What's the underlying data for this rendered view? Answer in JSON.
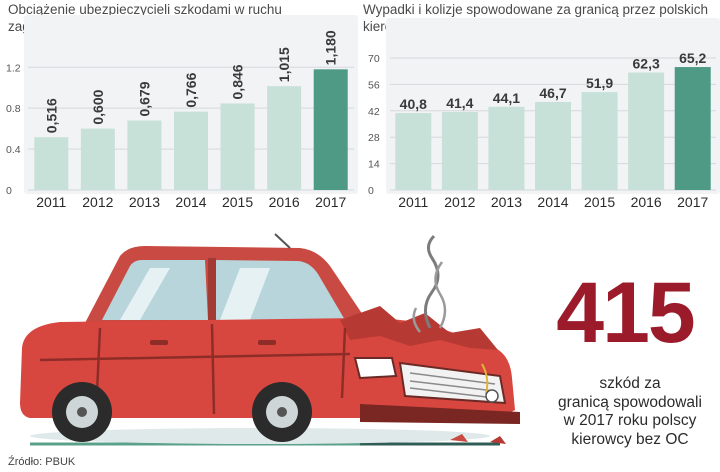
{
  "chart_data": [
    {
      "type": "bar",
      "title": "Obciążenie ubezpieczycieli szkodami w ruchu zagranicznym, w mld zł",
      "categories": [
        "2011",
        "2012",
        "2013",
        "2014",
        "2015",
        "2016",
        "2017"
      ],
      "values": [
        0.516,
        0.6,
        0.679,
        0.766,
        0.846,
        1.015,
        1.18
      ],
      "value_labels": [
        "0,516",
        "0,600",
        "0,679",
        "0,766",
        "0,846",
        "1,015",
        "1,180"
      ],
      "yticks": [
        0,
        0.4,
        0.8,
        1.2
      ],
      "ytick_labels": [
        "0",
        "0.4",
        "0.8",
        "1.2"
      ],
      "ylim": [
        0,
        1.32
      ],
      "grid": true,
      "colors": {
        "bar": "#c7e0d8",
        "highlight": "#4f9a85"
      }
    },
    {
      "type": "bar",
      "title": "Wypadki i kolizje spowodowane za granicą przez polskich kierowców, w tys.",
      "categories": [
        "2011",
        "2012",
        "2013",
        "2014",
        "2015",
        "2016",
        "2017"
      ],
      "values": [
        40.8,
        41.4,
        44.1,
        46.7,
        51.9,
        62.3,
        65.2
      ],
      "value_labels": [
        "40,8",
        "41,4",
        "44,1",
        "46,7",
        "51,9",
        "62,3",
        "65,2"
      ],
      "yticks": [
        0,
        14,
        28,
        42,
        56,
        70
      ],
      "ytick_labels": [
        "0",
        "14",
        "28",
        "42",
        "56",
        "70"
      ],
      "ylim": [
        0,
        70
      ],
      "grid": true,
      "colors": {
        "bar": "#c7e0d8",
        "highlight": "#4f9a85"
      }
    }
  ],
  "highlight": {
    "number": "415",
    "caption": [
      "szkód za",
      "granicą spowodowali",
      "w 2017 roku polscy",
      "kierowcy bez OC"
    ],
    "color": "#9b1b2b"
  },
  "source": "Źródło: PBUK"
}
